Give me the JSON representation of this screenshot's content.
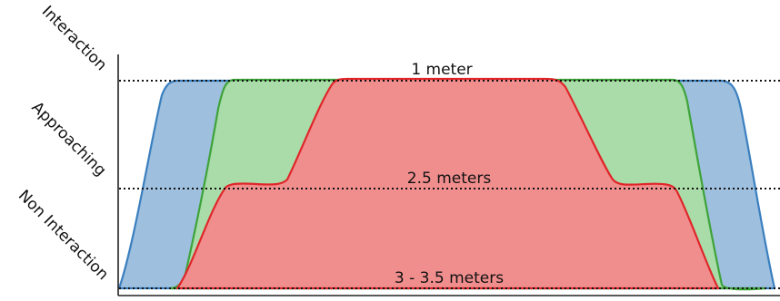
{
  "y_axis_labels": {
    "top": "Interaction",
    "middle": "Approaching",
    "bottom": "Non Interaction"
  },
  "level_labels": {
    "top": "1 meter",
    "middle": "2.5 meters",
    "bottom": "3 - 3.5 meters"
  },
  "colors": {
    "blue_fill": "#9ebfde",
    "blue_stroke": "#3a7fbf",
    "green_fill": "#a9dca8",
    "green_stroke": "#3ea33a",
    "red_fill": "#f08e8e",
    "red_stroke": "#e0262a",
    "axis": "#222222"
  }
}
